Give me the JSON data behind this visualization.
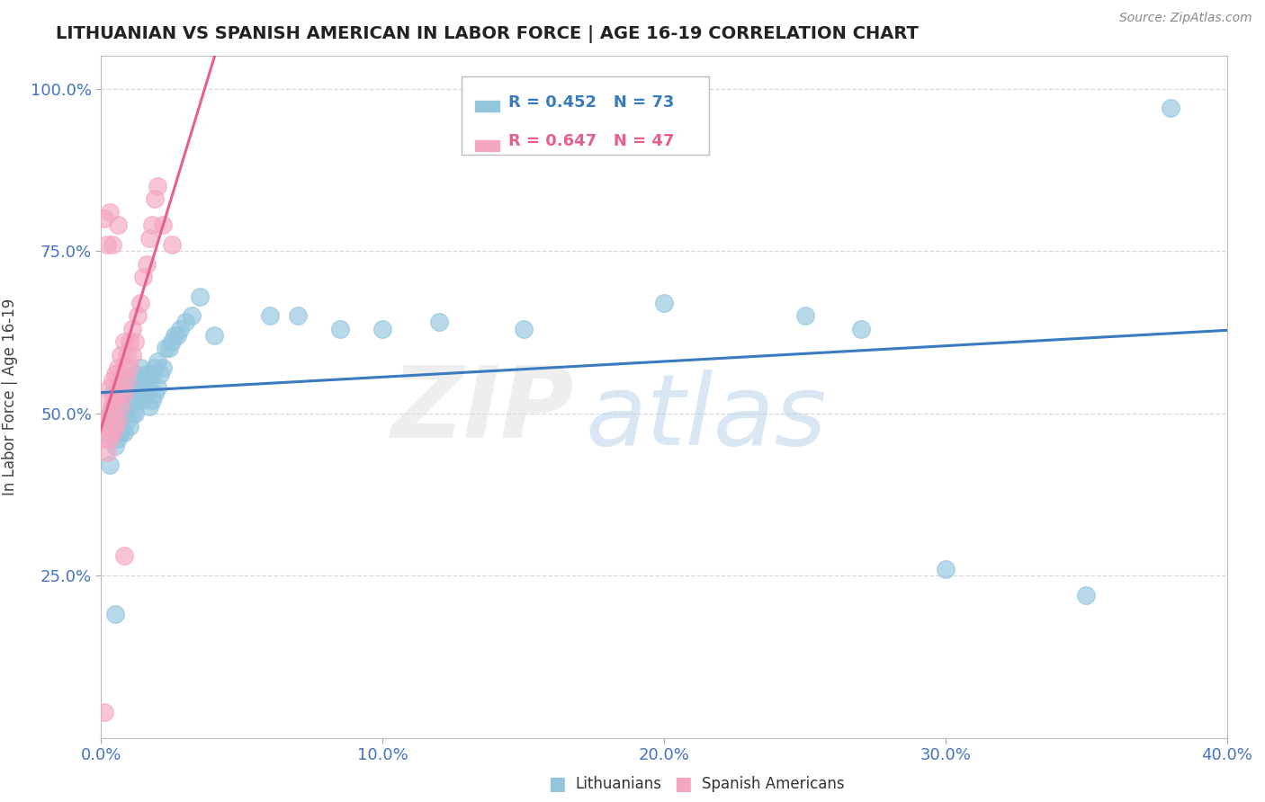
{
  "title": "LITHUANIAN VS SPANISH AMERICAN IN LABOR FORCE | AGE 16-19 CORRELATION CHART",
  "source": "Source: ZipAtlas.com",
  "ylabel": "In Labor Force | Age 16-19",
  "xlim": [
    0.0,
    0.4
  ],
  "ylim": [
    0.0,
    1.05
  ],
  "xticks": [
    0.0,
    0.1,
    0.2,
    0.3,
    0.4
  ],
  "yticks": [
    0.25,
    0.5,
    0.75,
    1.0
  ],
  "xticklabels": [
    "0.0%",
    "10.0%",
    "20.0%",
    "30.0%",
    "40.0%"
  ],
  "yticklabels": [
    "25.0%",
    "50.0%",
    "75.0%",
    "100.0%"
  ],
  "blue_color": "#92c5de",
  "pink_color": "#f4a6c0",
  "blue_line_color": "#3a7abf",
  "pink_line_color": "#e8608a",
  "R_blue": 0.452,
  "N_blue": 73,
  "R_pink": 0.647,
  "N_pink": 47,
  "blue_scatter_x": [
    0.001,
    0.002,
    0.003,
    0.004,
    0.004,
    0.005,
    0.005,
    0.005,
    0.006,
    0.006,
    0.006,
    0.007,
    0.007,
    0.007,
    0.007,
    0.008,
    0.008,
    0.008,
    0.009,
    0.009,
    0.009,
    0.01,
    0.01,
    0.01,
    0.011,
    0.011,
    0.012,
    0.012,
    0.012,
    0.013,
    0.013,
    0.014,
    0.014,
    0.015,
    0.015,
    0.016,
    0.016,
    0.017,
    0.017,
    0.018,
    0.018,
    0.019,
    0.019,
    0.02,
    0.02,
    0.021,
    0.022,
    0.023,
    0.024,
    0.025,
    0.026,
    0.027,
    0.028,
    0.03,
    0.032,
    0.035,
    0.04,
    0.06,
    0.07,
    0.085,
    0.1,
    0.12,
    0.15,
    0.2,
    0.25,
    0.27,
    0.3,
    0.35,
    0.38,
    0.003,
    0.005,
    0.007,
    0.005
  ],
  "blue_scatter_y": [
    0.47,
    0.49,
    0.5,
    0.51,
    0.53,
    0.45,
    0.48,
    0.52,
    0.46,
    0.5,
    0.54,
    0.47,
    0.49,
    0.51,
    0.55,
    0.47,
    0.5,
    0.53,
    0.49,
    0.51,
    0.54,
    0.48,
    0.51,
    0.55,
    0.5,
    0.54,
    0.5,
    0.53,
    0.56,
    0.52,
    0.55,
    0.53,
    0.57,
    0.52,
    0.55,
    0.53,
    0.56,
    0.51,
    0.55,
    0.52,
    0.56,
    0.53,
    0.57,
    0.54,
    0.58,
    0.56,
    0.57,
    0.6,
    0.6,
    0.61,
    0.62,
    0.62,
    0.63,
    0.64,
    0.65,
    0.68,
    0.62,
    0.65,
    0.65,
    0.63,
    0.63,
    0.64,
    0.63,
    0.67,
    0.65,
    0.63,
    0.26,
    0.22,
    0.97,
    0.42,
    0.5,
    0.47,
    0.19
  ],
  "pink_scatter_x": [
    0.001,
    0.001,
    0.002,
    0.002,
    0.002,
    0.003,
    0.003,
    0.003,
    0.004,
    0.004,
    0.004,
    0.005,
    0.005,
    0.005,
    0.006,
    0.006,
    0.006,
    0.007,
    0.007,
    0.007,
    0.008,
    0.008,
    0.008,
    0.009,
    0.009,
    0.01,
    0.01,
    0.011,
    0.011,
    0.012,
    0.013,
    0.014,
    0.015,
    0.016,
    0.017,
    0.018,
    0.019,
    0.02,
    0.022,
    0.025,
    0.004,
    0.006,
    0.008,
    0.003,
    0.002,
    0.001,
    0.001
  ],
  "pink_scatter_y": [
    0.46,
    0.49,
    0.44,
    0.48,
    0.52,
    0.46,
    0.5,
    0.54,
    0.47,
    0.51,
    0.55,
    0.48,
    0.52,
    0.56,
    0.49,
    0.53,
    0.57,
    0.51,
    0.55,
    0.59,
    0.53,
    0.57,
    0.61,
    0.55,
    0.59,
    0.57,
    0.61,
    0.59,
    0.63,
    0.61,
    0.65,
    0.67,
    0.71,
    0.73,
    0.77,
    0.79,
    0.83,
    0.85,
    0.79,
    0.76,
    0.76,
    0.79,
    0.28,
    0.81,
    0.76,
    0.8,
    0.04
  ],
  "background_color": "#ffffff",
  "grid_color": "#d8d8d8"
}
